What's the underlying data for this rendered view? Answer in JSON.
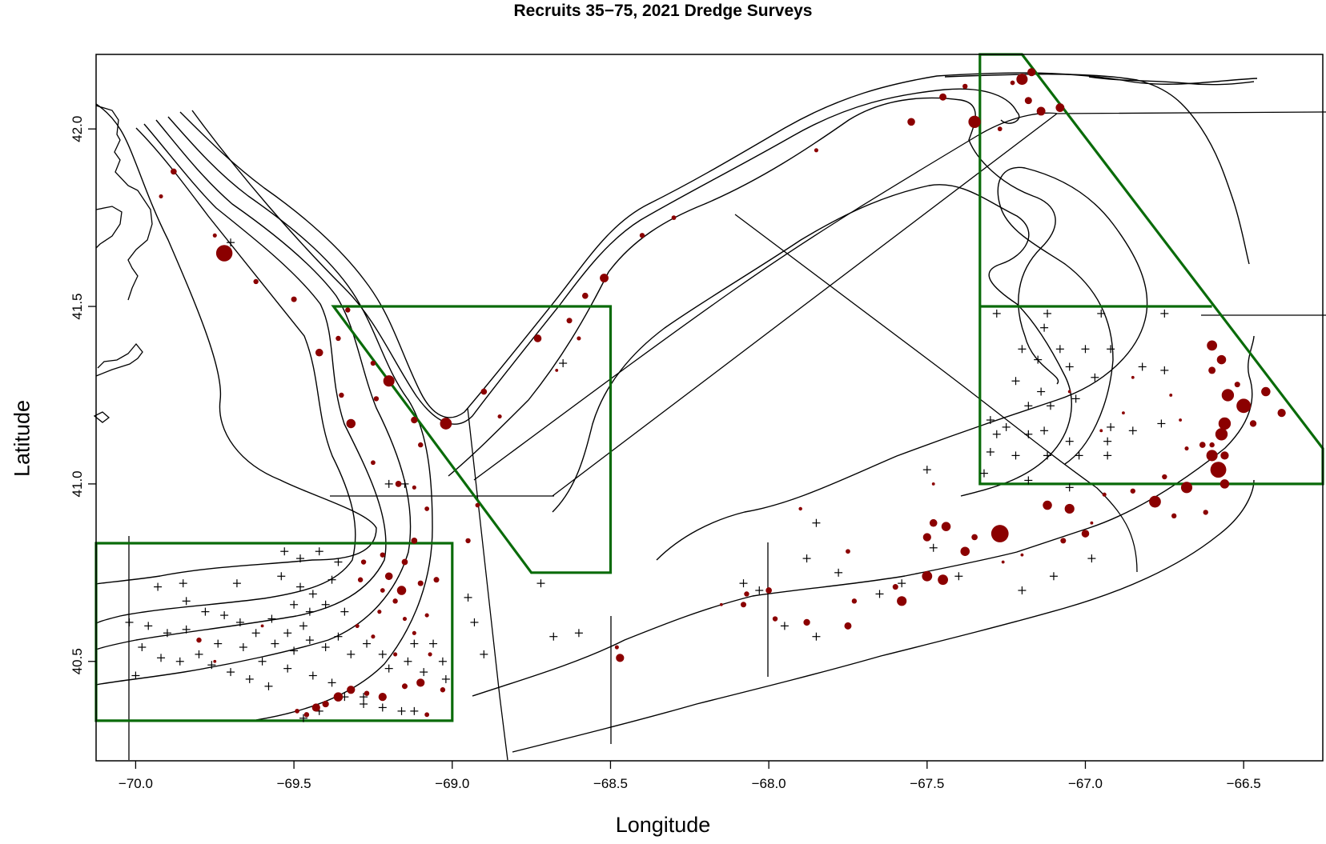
{
  "title": "Recruits 35−75, 2021 Dredge Surveys",
  "x_axis": {
    "label": "Longitude",
    "range": [
      -70.125,
      -66.25
    ],
    "ticks": [
      -70.0,
      -69.5,
      -69.0,
      -68.5,
      -68.0,
      -67.5,
      -67.0,
      -66.5
    ],
    "tick_labels": [
      "−70.0",
      "−69.5",
      "−69.0",
      "−68.5",
      "−68.0",
      "−67.5",
      "−67.0",
      "−66.5"
    ]
  },
  "y_axis": {
    "label": "Latitude",
    "range": [
      40.22,
      42.21
    ],
    "ticks": [
      40.5,
      41.0,
      41.5,
      42.0
    ],
    "tick_labels": [
      "40.5",
      "41.0",
      "41.5",
      "42.0"
    ]
  },
  "colors": {
    "catch": "#8b0000",
    "closed_area": "#0a6b0a",
    "lines": "#000000"
  },
  "closed_areas": [
    {
      "name": "Nantucket Lightship",
      "polygon": [
        [
          -70.125,
          40.833
        ],
        [
          -69.0,
          40.833
        ],
        [
          -69.0,
          40.333
        ],
        [
          -70.125,
          40.333
        ]
      ]
    },
    {
      "name": "Closed Area I",
      "polygon": [
        [
          -69.375,
          41.5
        ],
        [
          -68.5,
          41.5
        ],
        [
          -68.5,
          40.75
        ],
        [
          -68.75,
          40.75
        ]
      ]
    },
    {
      "name": "Closed Area II",
      "polygon": [
        [
          -67.333,
          42.21
        ],
        [
          -67.333,
          41.0
        ],
        [
          -66.25,
          41.0
        ],
        [
          -66.25,
          41.1
        ],
        [
          -67.2,
          42.21
        ]
      ]
    },
    {
      "name": "Closed Area II divider",
      "polygon": [
        [
          -67.333,
          41.5
        ],
        [
          -66.6,
          41.5
        ]
      ]
    }
  ],
  "zero_catch_stations": [
    [
      -69.7,
      41.68
    ],
    [
      -68.65,
      41.34
    ],
    [
      -68.72,
      40.72
    ],
    [
      -68.68,
      40.57
    ],
    [
      -68.6,
      40.58
    ],
    [
      -68.93,
      40.61
    ],
    [
      -68.9,
      40.52
    ],
    [
      -68.95,
      40.68
    ],
    [
      -69.15,
      41.0
    ],
    [
      -69.2,
      41.0
    ],
    [
      -69.53,
      40.81
    ],
    [
      -69.48,
      40.79
    ],
    [
      -69.42,
      40.81
    ],
    [
      -69.36,
      40.78
    ],
    [
      -69.38,
      40.73
    ],
    [
      -69.44,
      40.69
    ],
    [
      -69.48,
      40.71
    ],
    [
      -69.54,
      40.74
    ],
    [
      -69.5,
      40.66
    ],
    [
      -69.45,
      40.64
    ],
    [
      -69.4,
      40.66
    ],
    [
      -69.34,
      40.64
    ],
    [
      -69.47,
      40.6
    ],
    [
      -69.52,
      40.58
    ],
    [
      -69.57,
      40.62
    ],
    [
      -69.56,
      40.55
    ],
    [
      -69.5,
      40.53
    ],
    [
      -69.45,
      40.56
    ],
    [
      -69.4,
      40.54
    ],
    [
      -69.36,
      40.57
    ],
    [
      -69.32,
      40.52
    ],
    [
      -69.27,
      40.55
    ],
    [
      -69.22,
      40.52
    ],
    [
      -69.2,
      40.48
    ],
    [
      -69.14,
      40.5
    ],
    [
      -69.09,
      40.47
    ],
    [
      -69.03,
      40.5
    ],
    [
      -69.02,
      40.45
    ],
    [
      -69.12,
      40.55
    ],
    [
      -69.06,
      40.55
    ],
    [
      -69.62,
      40.58
    ],
    [
      -69.67,
      40.61
    ],
    [
      -69.72,
      40.63
    ],
    [
      -69.78,
      40.64
    ],
    [
      -69.84,
      40.67
    ],
    [
      -69.74,
      40.55
    ],
    [
      -69.8,
      40.52
    ],
    [
      -69.86,
      40.5
    ],
    [
      -69.92,
      40.51
    ],
    [
      -69.98,
      40.54
    ],
    [
      -69.96,
      40.6
    ],
    [
      -70.02,
      40.61
    ],
    [
      -69.9,
      40.58
    ],
    [
      -69.84,
      40.59
    ],
    [
      -69.66,
      40.54
    ],
    [
      -69.6,
      40.5
    ],
    [
      -69.64,
      40.45
    ],
    [
      -69.58,
      40.43
    ],
    [
      -69.7,
      40.47
    ],
    [
      -69.76,
      40.49
    ],
    [
      -69.52,
      40.48
    ],
    [
      -69.44,
      40.46
    ],
    [
      -69.38,
      40.44
    ],
    [
      -69.34,
      40.4
    ],
    [
      -69.28,
      40.38
    ],
    [
      -69.22,
      40.37
    ],
    [
      -69.16,
      40.36
    ],
    [
      -69.12,
      40.36
    ],
    [
      -69.42,
      40.36
    ],
    [
      -69.47,
      40.34
    ],
    [
      -70.0,
      40.46
    ],
    [
      -69.93,
      40.71
    ],
    [
      -69.85,
      40.72
    ],
    [
      -69.68,
      40.72
    ],
    [
      -69.28,
      40.4
    ],
    [
      -67.28,
      41.48
    ],
    [
      -67.12,
      41.48
    ],
    [
      -66.95,
      41.48
    ],
    [
      -66.75,
      41.48
    ],
    [
      -67.13,
      41.44
    ],
    [
      -67.2,
      41.38
    ],
    [
      -67.15,
      41.35
    ],
    [
      -67.08,
      41.38
    ],
    [
      -67.0,
      41.38
    ],
    [
      -66.92,
      41.38
    ],
    [
      -67.05,
      41.33
    ],
    [
      -66.97,
      41.3
    ],
    [
      -66.82,
      41.33
    ],
    [
      -66.75,
      41.32
    ],
    [
      -67.22,
      41.29
    ],
    [
      -67.14,
      41.26
    ],
    [
      -67.03,
      41.24
    ],
    [
      -67.18,
      41.22
    ],
    [
      -67.11,
      41.22
    ],
    [
      -67.3,
      41.18
    ],
    [
      -67.25,
      41.16
    ],
    [
      -67.13,
      41.15
    ],
    [
      -66.92,
      41.16
    ],
    [
      -66.85,
      41.15
    ],
    [
      -66.76,
      41.17
    ],
    [
      -67.28,
      41.14
    ],
    [
      -67.18,
      41.14
    ],
    [
      -67.05,
      41.12
    ],
    [
      -66.93,
      41.12
    ],
    [
      -67.3,
      41.09
    ],
    [
      -67.22,
      41.08
    ],
    [
      -67.12,
      41.08
    ],
    [
      -67.02,
      41.08
    ],
    [
      -66.93,
      41.08
    ],
    [
      -67.32,
      41.03
    ],
    [
      -67.18,
      41.01
    ],
    [
      -67.05,
      40.99
    ],
    [
      -66.98,
      40.79
    ],
    [
      -67.1,
      40.74
    ],
    [
      -67.2,
      40.7
    ],
    [
      -67.4,
      40.74
    ],
    [
      -67.48,
      40.82
    ],
    [
      -67.5,
      41.04
    ],
    [
      -67.58,
      40.72
    ],
    [
      -67.85,
      40.89
    ],
    [
      -67.88,
      40.79
    ],
    [
      -67.78,
      40.75
    ],
    [
      -67.65,
      40.69
    ],
    [
      -67.95,
      40.6
    ],
    [
      -67.85,
      40.57
    ],
    [
      -68.08,
      40.72
    ],
    [
      -68.03,
      40.7
    ]
  ],
  "catch_stations": [
    [
      -69.88,
      41.88,
      1.2
    ],
    [
      -69.92,
      41.81,
      0.8
    ],
    [
      -69.72,
      41.65,
      3.2
    ],
    [
      -69.62,
      41.57,
      1.0
    ],
    [
      -69.5,
      41.52,
      1.1
    ],
    [
      -69.75,
      41.7,
      0.8
    ],
    [
      -69.42,
      41.37,
      1.5
    ],
    [
      -69.36,
      41.41,
      1.0
    ],
    [
      -69.33,
      41.49,
      1.0
    ],
    [
      -69.2,
      41.29,
      2.2
    ],
    [
      -69.25,
      41.34,
      1.0
    ],
    [
      -69.32,
      41.17,
      1.8
    ],
    [
      -69.35,
      41.25,
      1.0
    ],
    [
      -69.24,
      41.24,
      1.0
    ],
    [
      -69.12,
      41.18,
      1.3
    ],
    [
      -69.1,
      41.11,
      1.0
    ],
    [
      -69.02,
      41.17,
      2.3
    ],
    [
      -69.25,
      41.06,
      0.9
    ],
    [
      -69.17,
      41.0,
      1.2
    ],
    [
      -69.12,
      40.99,
      0.8
    ],
    [
      -69.08,
      40.93,
      0.9
    ],
    [
      -68.92,
      40.94,
      0.9
    ],
    [
      -68.95,
      40.84,
      1.0
    ],
    [
      -69.12,
      40.84,
      1.2
    ],
    [
      -69.22,
      40.8,
      1.0
    ],
    [
      -69.28,
      40.78,
      1.0
    ],
    [
      -69.15,
      40.78,
      1.2
    ],
    [
      -69.2,
      40.74,
      1.5
    ],
    [
      -69.16,
      40.7,
      1.8
    ],
    [
      -69.1,
      40.72,
      1.1
    ],
    [
      -69.05,
      40.73,
      1.1
    ],
    [
      -69.18,
      40.67,
      1.0
    ],
    [
      -69.22,
      40.7,
      0.9
    ],
    [
      -69.29,
      40.73,
      1.0
    ],
    [
      -69.23,
      40.64,
      0.8
    ],
    [
      -69.15,
      40.62,
      0.8
    ],
    [
      -69.08,
      40.63,
      0.8
    ],
    [
      -69.3,
      40.6,
      0.8
    ],
    [
      -69.25,
      40.57,
      0.8
    ],
    [
      -69.12,
      40.58,
      0.8
    ],
    [
      -69.18,
      40.52,
      0.8
    ],
    [
      -69.07,
      40.52,
      0.8
    ],
    [
      -69.03,
      40.42,
      1.0
    ],
    [
      -69.1,
      40.44,
      1.6
    ],
    [
      -69.15,
      40.43,
      1.1
    ],
    [
      -69.22,
      40.4,
      1.6
    ],
    [
      -69.27,
      40.41,
      1.0
    ],
    [
      -69.32,
      40.42,
      1.6
    ],
    [
      -69.36,
      40.4,
      1.8
    ],
    [
      -69.4,
      40.38,
      1.3
    ],
    [
      -69.43,
      40.37,
      1.6
    ],
    [
      -69.46,
      40.35,
      1.0
    ],
    [
      -69.49,
      40.36,
      0.9
    ],
    [
      -69.08,
      40.35,
      0.9
    ],
    [
      -69.8,
      40.56,
      1.0
    ],
    [
      -69.75,
      40.5,
      0.6
    ],
    [
      -69.6,
      40.6,
      0.6
    ],
    [
      -68.47,
      40.51,
      1.6
    ],
    [
      -68.48,
      40.54,
      0.8
    ],
    [
      -68.9,
      41.26,
      1.2
    ],
    [
      -68.85,
      41.19,
      0.8
    ],
    [
      -68.73,
      41.41,
      1.5
    ],
    [
      -68.63,
      41.46,
      1.1
    ],
    [
      -68.58,
      41.53,
      1.2
    ],
    [
      -68.52,
      41.58,
      1.7
    ],
    [
      -68.6,
      41.41,
      0.8
    ],
    [
      -68.67,
      41.32,
      0.6
    ],
    [
      -68.4,
      41.7,
      1.0
    ],
    [
      -68.3,
      41.75,
      0.9
    ],
    [
      -67.85,
      41.94,
      0.8
    ],
    [
      -67.55,
      42.02,
      1.5
    ],
    [
      -67.45,
      42.09,
      1.4
    ],
    [
      -67.38,
      42.12,
      1.0
    ],
    [
      -67.35,
      42.02,
      2.4
    ],
    [
      -67.27,
      42.0,
      0.9
    ],
    [
      -67.23,
      42.13,
      0.9
    ],
    [
      -67.2,
      42.14,
      2.2
    ],
    [
      -67.17,
      42.16,
      1.6
    ],
    [
      -67.18,
      42.08,
      1.4
    ],
    [
      -67.14,
      42.05,
      1.7
    ],
    [
      -67.08,
      42.06,
      1.7
    ],
    [
      -66.6,
      41.39,
      2.0
    ],
    [
      -66.57,
      41.35,
      1.8
    ],
    [
      -66.6,
      41.32,
      1.4
    ],
    [
      -66.52,
      41.28,
      1.1
    ],
    [
      -66.55,
      41.25,
      2.4
    ],
    [
      -66.5,
      41.22,
      2.8
    ],
    [
      -66.43,
      41.26,
      1.8
    ],
    [
      -66.38,
      41.2,
      1.6
    ],
    [
      -66.47,
      41.17,
      1.3
    ],
    [
      -66.56,
      41.17,
      2.4
    ],
    [
      -66.57,
      41.14,
      2.4
    ],
    [
      -66.6,
      41.11,
      1.0
    ],
    [
      -66.63,
      41.11,
      1.2
    ],
    [
      -66.6,
      41.08,
      2.2
    ],
    [
      -66.56,
      41.08,
      1.6
    ],
    [
      -66.58,
      41.04,
      3.1
    ],
    [
      -66.56,
      41.0,
      1.8
    ],
    [
      -66.68,
      40.99,
      2.2
    ],
    [
      -66.62,
      40.92,
      1.0
    ],
    [
      -66.72,
      40.91,
      1.0
    ],
    [
      -66.78,
      40.95,
      2.3
    ],
    [
      -66.75,
      41.02,
      1.0
    ],
    [
      -66.85,
      40.98,
      1.0
    ],
    [
      -66.94,
      40.97,
      0.8
    ],
    [
      -67.05,
      40.93,
      1.9
    ],
    [
      -67.12,
      40.94,
      1.8
    ],
    [
      -67.0,
      40.86,
      1.5
    ],
    [
      -67.07,
      40.84,
      1.1
    ],
    [
      -67.27,
      40.86,
      3.4
    ],
    [
      -67.38,
      40.81,
      1.8
    ],
    [
      -67.44,
      40.88,
      1.8
    ],
    [
      -67.48,
      40.89,
      1.5
    ],
    [
      -67.5,
      40.85,
      1.6
    ],
    [
      -67.5,
      40.74,
      2.0
    ],
    [
      -67.45,
      40.73,
      2.0
    ],
    [
      -67.58,
      40.67,
      1.9
    ],
    [
      -67.6,
      40.71,
      1.1
    ],
    [
      -67.75,
      40.6,
      1.4
    ],
    [
      -67.73,
      40.67,
      1.0
    ],
    [
      -67.88,
      40.61,
      1.3
    ],
    [
      -67.98,
      40.62,
      1.0
    ],
    [
      -68.0,
      40.7,
      1.2
    ],
    [
      -68.07,
      40.69,
      1.0
    ],
    [
      -68.08,
      40.66,
      1.1
    ],
    [
      -67.35,
      40.85,
      1.2
    ],
    [
      -67.2,
      40.8,
      0.6
    ],
    [
      -66.98,
      40.89,
      0.6
    ],
    [
      -67.26,
      40.78,
      0.6
    ],
    [
      -67.48,
      41.0,
      0.6
    ],
    [
      -67.75,
      40.81,
      0.9
    ],
    [
      -67.9,
      40.93,
      0.7
    ],
    [
      -68.15,
      40.66,
      0.6
    ],
    [
      -66.85,
      41.3,
      0.6
    ],
    [
      -66.88,
      41.2,
      0.6
    ],
    [
      -66.95,
      41.15,
      0.6
    ],
    [
      -67.05,
      41.26,
      0.6
    ],
    [
      -66.73,
      41.25,
      0.6
    ],
    [
      -66.7,
      41.18,
      0.6
    ],
    [
      -66.68,
      41.1,
      0.8
    ]
  ]
}
